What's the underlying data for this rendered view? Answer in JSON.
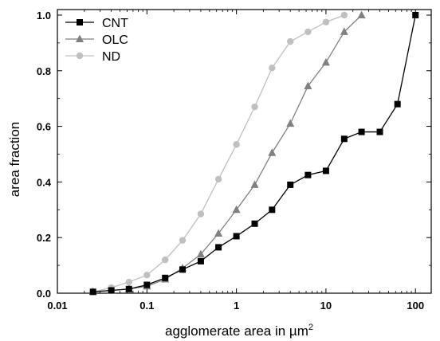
{
  "chart_data": {
    "type": "line",
    "xscale": "log",
    "xlim": [
      0.01,
      150
    ],
    "ylim": [
      0,
      1.02
    ],
    "xlabel": "agglomerate area in µm",
    "xlabel_sup": "2",
    "ylabel": "area fraction",
    "xticks": [
      {
        "value": 0.01,
        "label": "0.01"
      },
      {
        "value": 0.1,
        "label": "0.1"
      },
      {
        "value": 1,
        "label": "1"
      },
      {
        "value": 10,
        "label": "10"
      },
      {
        "value": 100,
        "label": "100"
      }
    ],
    "yticks": [
      {
        "value": 0.0,
        "label": "0.0"
      },
      {
        "value": 0.2,
        "label": "0.2"
      },
      {
        "value": 0.4,
        "label": "0.4"
      },
      {
        "value": 0.6,
        "label": "0.6"
      },
      {
        "value": 0.8,
        "label": "0.8"
      },
      {
        "value": 1.0,
        "label": "1.0"
      }
    ],
    "grid": false,
    "legend_position": "top-left",
    "series": [
      {
        "name": "CNT",
        "marker": "square",
        "color": "#000000",
        "x": [
          0.025,
          0.04,
          0.063,
          0.1,
          0.16,
          0.25,
          0.4,
          0.63,
          1.0,
          1.6,
          2.5,
          4.0,
          6.3,
          10,
          16,
          25,
          40,
          63,
          100
        ],
        "y": [
          0.005,
          0.01,
          0.015,
          0.03,
          0.055,
          0.085,
          0.115,
          0.165,
          0.205,
          0.25,
          0.3,
          0.39,
          0.425,
          0.44,
          0.555,
          0.58,
          0.58,
          0.68,
          1.0
        ]
      },
      {
        "name": "OLC",
        "marker": "triangle",
        "color": "#808080",
        "x": [
          0.025,
          0.04,
          0.063,
          0.1,
          0.16,
          0.25,
          0.4,
          0.63,
          1.0,
          1.6,
          2.5,
          4.0,
          6.3,
          10,
          16,
          25
        ],
        "y": [
          0.005,
          0.01,
          0.015,
          0.025,
          0.05,
          0.09,
          0.14,
          0.215,
          0.3,
          0.39,
          0.505,
          0.61,
          0.745,
          0.83,
          0.94,
          1.0
        ]
      },
      {
        "name": "ND",
        "marker": "circle",
        "color": "#c0c0c0",
        "x": [
          0.025,
          0.04,
          0.063,
          0.1,
          0.16,
          0.25,
          0.4,
          0.63,
          1.0,
          1.6,
          2.5,
          4.0,
          6.3,
          10,
          16
        ],
        "y": [
          0.005,
          0.02,
          0.04,
          0.065,
          0.12,
          0.19,
          0.285,
          0.41,
          0.535,
          0.67,
          0.81,
          0.905,
          0.94,
          0.975,
          1.0
        ]
      }
    ]
  }
}
